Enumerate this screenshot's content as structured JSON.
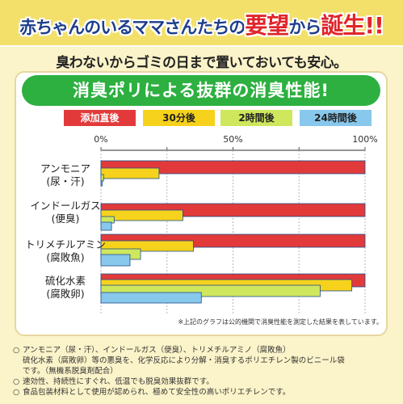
{
  "header": {
    "headline_a": "赤ちゃんのいるママさんたちの",
    "headline_b": "要望",
    "headline_c": "から",
    "headline_d": "誕生!!",
    "subline": "臭わないからゴミの日まで置いておいても安心。",
    "banner": "消臭ポリによる抜群の消臭性能!"
  },
  "colors": {
    "red": "#e23a3a",
    "yellow": "#f7d21c",
    "green": "#cfe75d",
    "blue": "#88c8ec",
    "headline_accent": "#e0252b",
    "headline_text": "#1d3e8a",
    "banner_green": "#2db040"
  },
  "chart_data": {
    "type": "bar",
    "orientation": "horizontal",
    "categories": [
      [
        "アンモニア",
        "(尿・汗)"
      ],
      [
        "インドールガス",
        "(便臭)"
      ],
      [
        "トリメチルアミン",
        "(腐敗魚)"
      ],
      [
        "硫化水素",
        "(腐敗卵)"
      ]
    ],
    "series": [
      {
        "name": "添加直後",
        "color": "#e23a3a",
        "text_color": "#ffffff",
        "values": [
          100,
          100,
          100,
          100
        ]
      },
      {
        "name": "30分後",
        "color": "#f7d21c",
        "text_color": "#222222",
        "values": [
          22,
          31,
          35,
          95
        ]
      },
      {
        "name": "2時間後",
        "color": "#cfe75d",
        "text_color": "#222222",
        "values": [
          1,
          5,
          15,
          83
        ]
      },
      {
        "name": "24時間後",
        "color": "#88c8ec",
        "text_color": "#222222",
        "values": [
          0.5,
          4,
          11,
          38
        ]
      }
    ],
    "x_ticks": [
      "0%",
      "50%",
      "100%"
    ],
    "xlim": [
      0,
      100
    ],
    "grid": true,
    "legend": "top"
  },
  "footnote": "※上記のグラフは公的機関で消臭性能を測定した結果を表しています。",
  "notes": [
    {
      "bullet": "○",
      "lines": [
        "アンモニア（尿・汗）、インドールガス（便臭）、トリメチルアミノ（腐敗魚）",
        "硫化水素（腐敗卵）等の悪臭を、化学反応により分解・消臭するポリエチレン製のビニール袋",
        "です。（無機系脱臭剤配合）"
      ]
    },
    {
      "bullet": "○",
      "lines": [
        "速効性、持続性にすぐれ、低温でも脱臭効果抜群です。"
      ]
    },
    {
      "bullet": "○",
      "lines": [
        "食品包装材料として使用が認められ、極めて安全性の高いポリエチレンです。"
      ]
    }
  ]
}
